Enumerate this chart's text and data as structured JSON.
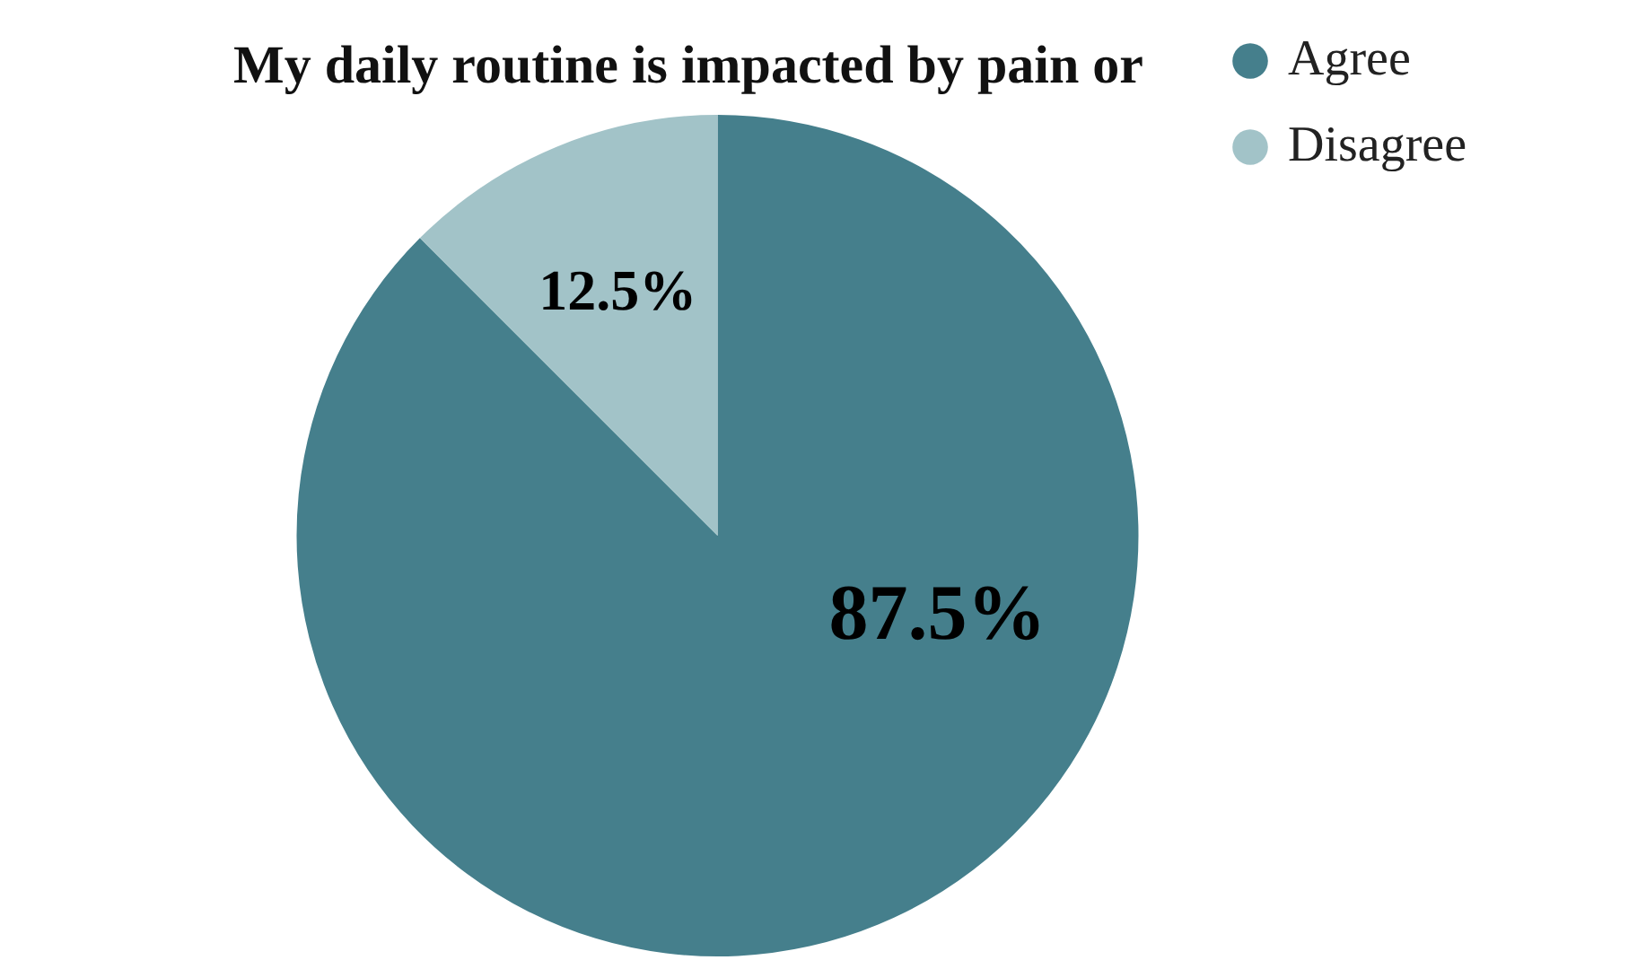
{
  "chart_data": {
    "type": "pie",
    "title": "My daily routine is impacted by pain or",
    "categories": [
      "Agree",
      "Disagree"
    ],
    "values": [
      87.5,
      12.5
    ],
    "colors": [
      "#457f8c",
      "#a2c3c8"
    ],
    "value_labels": [
      "87.5%",
      "12.5%"
    ],
    "legend": "top right"
  }
}
